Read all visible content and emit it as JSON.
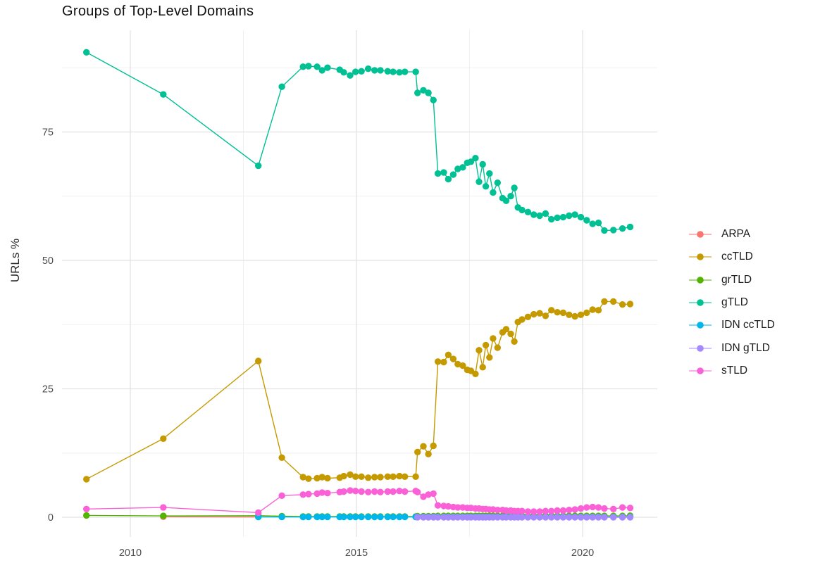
{
  "chart_data": {
    "type": "line",
    "markers": true,
    "title": "Groups of Top-Level Domains",
    "xlabel": "",
    "ylabel": "URLs %",
    "xlim": [
      2008.49,
      2021.65
    ],
    "ylim": [
      -3.84,
      94.79
    ],
    "grid": true,
    "legend_position": "right",
    "x_ticks": [
      {
        "value": 2010,
        "label": "2010"
      },
      {
        "value": 2015,
        "label": "2015"
      },
      {
        "value": 2020,
        "label": "2020"
      }
    ],
    "y_ticks": [
      {
        "value": 0,
        "label": "0"
      },
      {
        "value": 25,
        "label": "25"
      },
      {
        "value": 50,
        "label": "50"
      },
      {
        "value": 75,
        "label": "75"
      }
    ],
    "x_minor_ticks": [
      2012.5,
      2017.5
    ],
    "y_minor_ticks": [
      12.5,
      37.5,
      62.5,
      87.5
    ],
    "colors": {
      "ARPA": "#F8766D",
      "ccTLD": "#C49A00",
      "grTLD": "#53B400",
      "gTLD": "#00C094",
      "IDN ccTLD": "#00B6EB",
      "IDN gTLD": "#A58AFF",
      "sTLD": "#FB61D7"
    },
    "legend_order": [
      "ARPA",
      "ccTLD",
      "grTLD",
      "gTLD",
      "IDN ccTLD",
      "IDN gTLD",
      "sTLD"
    ],
    "x": [
      2009.03,
      2010.73,
      2012.83,
      2013.35,
      2013.82,
      2013.94,
      2014.13,
      2014.24,
      2014.36,
      2014.63,
      2014.72,
      2014.86,
      2014.98,
      2015.11,
      2015.26,
      2015.4,
      2015.53,
      2015.69,
      2015.81,
      2015.95,
      2016.07,
      2016.31,
      2016.35,
      2016.48,
      2016.59,
      2016.7,
      2016.8,
      2016.93,
      2017.03,
      2017.14,
      2017.24,
      2017.35,
      2017.45,
      2017.53,
      2017.63,
      2017.71,
      2017.79,
      2017.86,
      2017.94,
      2018.02,
      2018.12,
      2018.23,
      2018.31,
      2018.41,
      2018.49,
      2018.57,
      2018.66,
      2018.79,
      2018.92,
      2019.05,
      2019.18,
      2019.31,
      2019.44,
      2019.57,
      2019.7,
      2019.83,
      2019.96,
      2020.09,
      2020.22,
      2020.35,
      2020.48,
      2020.68,
      2020.88,
      2021.05
    ],
    "series": [
      {
        "name": "ARPA",
        "start": 1,
        "y": [
          0.1,
          0.05
        ]
      },
      {
        "name": "grTLD",
        "start": 0,
        "y": [
          0.35,
          0.25,
          0.3,
          0.2,
          0.15,
          0.15,
          0.15,
          0.15,
          0.15,
          0.15,
          0.15,
          0.15,
          0.15,
          0.15,
          0.15,
          0.15,
          0.15,
          0.15,
          0.15,
          0.15,
          0.15,
          0.15,
          0.2,
          0.2,
          0.2,
          0.2,
          0.25,
          0.25,
          0.25,
          0.25,
          0.25,
          0.25,
          0.25,
          0.25,
          0.25,
          0.25,
          0.25,
          0.25,
          0.25,
          0.25,
          0.25,
          0.25,
          0.25,
          0.25,
          0.25,
          0.25,
          0.25,
          0.25,
          0.25,
          0.25,
          0.25,
          0.25,
          0.25,
          0.25,
          0.25,
          0.25,
          0.25,
          0.25,
          0.25,
          0.25,
          0.25,
          0.25,
          0.25,
          0.3
        ]
      },
      {
        "name": "IDN ccTLD",
        "start": 2,
        "const_y": 0.05,
        "count": 62
      },
      {
        "name": "IDN gTLD",
        "start": 22,
        "const_y": 0.0,
        "count": 42
      },
      {
        "name": "ccTLD",
        "start": 0,
        "y": [
          7.4,
          15.3,
          30.4,
          11.6,
          7.8,
          7.5,
          7.6,
          7.8,
          7.6,
          7.7,
          8.0,
          8.3,
          7.9,
          7.9,
          7.7,
          7.8,
          7.8,
          7.9,
          7.9,
          8.0,
          7.9,
          7.9,
          12.7,
          13.8,
          12.3,
          13.9,
          30.3,
          30.2,
          31.6,
          30.8,
          29.8,
          29.5,
          28.7,
          28.5,
          27.9,
          32.5,
          29.2,
          33.5,
          31.1,
          34.8,
          33.0,
          36.0,
          36.6,
          35.7,
          34.2,
          38.0,
          38.5,
          39.0,
          39.5,
          39.7,
          39.2,
          40.3,
          39.9,
          39.8,
          39.4,
          39.1,
          39.4,
          39.8,
          40.4,
          40.3,
          42.0,
          42.0,
          41.4,
          41.5
        ]
      },
      {
        "name": "gTLD",
        "start": 0,
        "y": [
          90.5,
          82.3,
          68.4,
          83.8,
          87.7,
          87.8,
          87.7,
          87.0,
          87.5,
          87.1,
          86.6,
          86.0,
          86.7,
          86.8,
          87.3,
          87.0,
          87.0,
          86.8,
          86.7,
          86.6,
          86.7,
          86.7,
          82.6,
          83.1,
          82.6,
          81.2,
          66.9,
          67.1,
          65.8,
          66.7,
          67.8,
          68.1,
          69.0,
          69.2,
          69.9,
          65.3,
          68.7,
          64.4,
          66.9,
          63.2,
          65.1,
          62.1,
          61.6,
          62.5,
          64.1,
          60.3,
          59.8,
          59.4,
          58.9,
          58.7,
          59.1,
          58.0,
          58.3,
          58.4,
          58.7,
          58.9,
          58.4,
          57.8,
          57.1,
          57.3,
          55.8,
          55.9,
          56.2,
          56.5
        ]
      },
      {
        "name": "sTLD",
        "start": 0,
        "y": [
          1.6,
          1.9,
          0.9,
          4.2,
          4.4,
          4.5,
          4.6,
          4.8,
          4.7,
          4.9,
          5.0,
          5.2,
          5.1,
          5.0,
          4.9,
          5.0,
          4.9,
          5.0,
          5.0,
          5.1,
          5.0,
          5.1,
          4.9,
          4.0,
          4.4,
          4.6,
          2.3,
          2.2,
          2.1,
          2.0,
          1.9,
          1.9,
          1.8,
          1.8,
          1.7,
          1.7,
          1.6,
          1.6,
          1.5,
          1.5,
          1.4,
          1.4,
          1.3,
          1.3,
          1.2,
          1.2,
          1.2,
          1.1,
          1.1,
          1.1,
          1.2,
          1.2,
          1.3,
          1.3,
          1.4,
          1.5,
          1.7,
          1.9,
          2.0,
          1.9,
          1.7,
          1.6,
          1.9,
          1.8
        ]
      }
    ]
  }
}
